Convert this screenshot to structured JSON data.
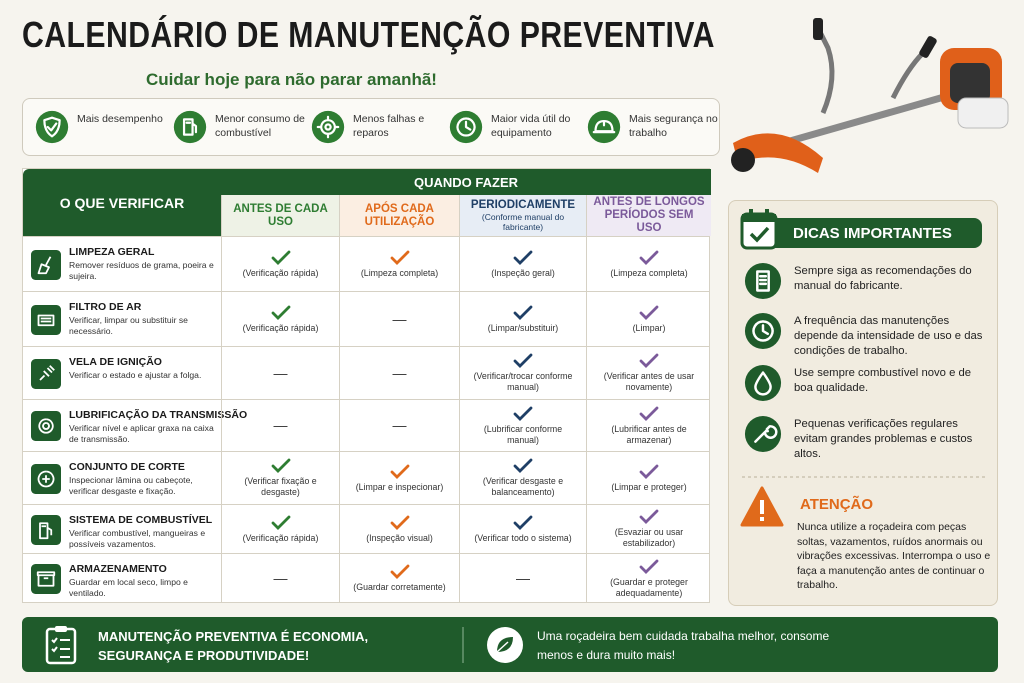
{
  "header": {
    "title": "CALENDÁRIO DE MANUTENÇÃO PREVENTIVA",
    "subtitle": "Cuidar hoje para não parar amanhã!"
  },
  "benefits": [
    "Mais desempenho",
    "Menor consumo de combustível",
    "Menos falhas e reparos",
    "Maior vida útil do equipamento",
    "Mais segurança no trabalho"
  ],
  "table": {
    "check_header": "O QUE VERIFICAR",
    "when_header": "QUANDO FAZER",
    "columns": [
      {
        "label": "ANTES DE CADA USO",
        "color": "#2e7d32"
      },
      {
        "label": "APÓS CADA UTILIZAÇÃO",
        "color": "#e06a1b"
      },
      {
        "label": "PERIODICAMENTE",
        "note": "(Conforme manual do fabricante)",
        "color": "#1f3f66"
      },
      {
        "label": "ANTES DE LONGOS PERÍODOS SEM USO",
        "color": "#7b5a9a"
      }
    ],
    "rows": [
      {
        "title": "LIMPEZA GERAL",
        "description": "Remover resíduos de grama, poeira e sujeira.",
        "cells": [
          {
            "check": true,
            "text": "(Verificação rápida)"
          },
          {
            "check": true,
            "text": "(Limpeza completa)"
          },
          {
            "check": true,
            "text": "(Inspeção geral)"
          },
          {
            "check": true,
            "text": "(Limpeza completa)"
          }
        ]
      },
      {
        "title": "FILTRO DE AR",
        "description": "Verificar, limpar ou substituir se necessário.",
        "cells": [
          {
            "check": true,
            "text": "(Verificação rápida)"
          },
          {
            "check": false,
            "text": "—"
          },
          {
            "check": true,
            "text": "(Limpar/substituir)"
          },
          {
            "check": true,
            "text": "(Limpar)"
          }
        ]
      },
      {
        "title": "VELA DE IGNIÇÃO",
        "description": "Verificar o estado e ajustar a folga.",
        "cells": [
          {
            "check": false,
            "text": "—"
          },
          {
            "check": false,
            "text": "—"
          },
          {
            "check": true,
            "text": "(Verificar/trocar conforme manual)"
          },
          {
            "check": true,
            "text": "(Verificar antes de usar novamente)"
          }
        ]
      },
      {
        "title": "LUBRIFICAÇÃO DA TRANSMISSÃO",
        "description": "Verificar nível e aplicar graxa na caixa de transmissão.",
        "cells": [
          {
            "check": false,
            "text": "—"
          },
          {
            "check": false,
            "text": "—"
          },
          {
            "check": true,
            "text": "(Lubrificar conforme manual)"
          },
          {
            "check": true,
            "text": "(Lubrificar antes de armazenar)"
          }
        ]
      },
      {
        "title": "CONJUNTO DE CORTE",
        "description": "Inspecionar lâmina ou cabeçote, verificar desgaste e fixação.",
        "cells": [
          {
            "check": true,
            "text": "(Verificar fixação e desgaste)"
          },
          {
            "check": true,
            "text": "(Limpar e inspecionar)"
          },
          {
            "check": true,
            "text": "(Verificar desgaste e balanceamento)"
          },
          {
            "check": true,
            "text": "(Limpar e proteger)"
          }
        ]
      },
      {
        "title": "SISTEMA DE COMBUSTÍVEL",
        "description": "Verificar combustível, mangueiras e possíveis vazamentos.",
        "cells": [
          {
            "check": true,
            "text": "(Verificação rápida)"
          },
          {
            "check": true,
            "text": "(Inspeção visual)"
          },
          {
            "check": true,
            "text": "(Verificar todo o sistema)"
          },
          {
            "check": true,
            "text": "(Esvaziar ou usar estabilizador)"
          }
        ]
      },
      {
        "title": "ARMAZENAMENTO",
        "description": "Guardar em local seco, limpo e ventilado.",
        "cells": [
          {
            "check": false,
            "text": "—"
          },
          {
            "check": true,
            "text": "(Guardar corretamente)"
          },
          {
            "check": false,
            "text": "—"
          },
          {
            "check": true,
            "text": "(Guardar e proteger adequadamente)"
          }
        ]
      }
    ]
  },
  "tips": {
    "title": "DICAS IMPORTANTES",
    "items": [
      "Sempre siga as recomendações do manual do fabricante.",
      "A frequência das manutenções depende da intensidade de uso e das condições de trabalho.",
      "Use sempre combustível novo e de boa qualidade.",
      "Pequenas verificações regulares evitam grandes problemas e custos altos."
    ]
  },
  "warning": {
    "title": "ATENÇÃO",
    "text": "Nunca utilize a roçadeira com peças soltas, vazamentos, ruídos anormais ou vibrações excessivas. Interrompa o uso e faça a manutenção antes de continuar o trabalho."
  },
  "footer": {
    "slogan": "MANUTENÇÃO PREVENTIVA É ECONOMIA, SEGURANÇA E PRODUTIVIDADE!",
    "message": "Uma roçadeira bem cuidada trabalha melhor, consome menos e dura muito mais!"
  }
}
